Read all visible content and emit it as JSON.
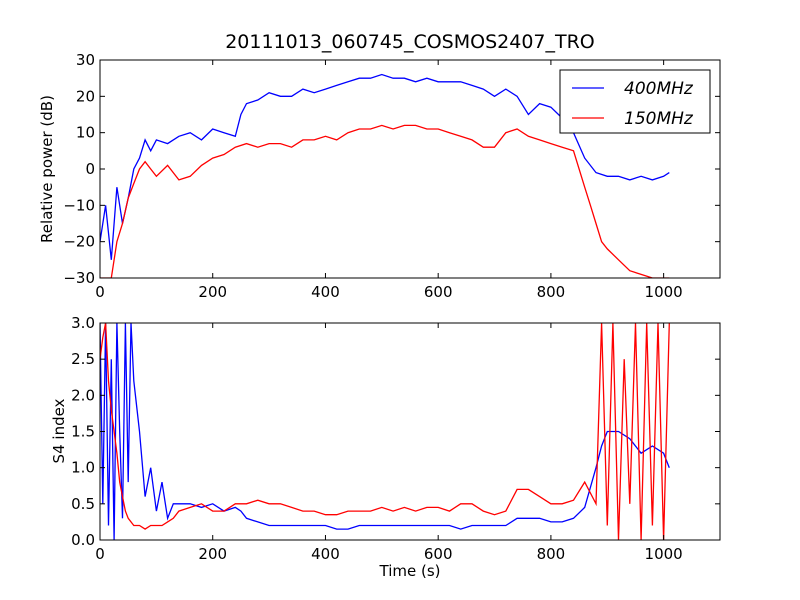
{
  "title": "20111013_060745_COSMOS2407_TRO",
  "colors": {
    "s400": "#0000ff",
    "s150": "#ff0000",
    "axis": "#000000",
    "background": "#ffffff"
  },
  "legend": {
    "position": "top-right",
    "entries": [
      "400MHz",
      "150MHz"
    ]
  },
  "chart_data": [
    {
      "type": "line",
      "title": "20111013_060745_COSMOS2407_TRO",
      "xlabel": "",
      "ylabel": "Relative power (dB)",
      "xlim": [
        0,
        1100
      ],
      "ylim": [
        -30,
        30
      ],
      "xticks": [
        0,
        200,
        400,
        600,
        800,
        1000
      ],
      "yticks": [
        -30,
        -20,
        -10,
        0,
        10,
        20,
        30
      ],
      "grid": false,
      "legend": "top-right",
      "series": [
        {
          "name": "400MHz",
          "color": "#0000ff",
          "x": [
            0,
            10,
            20,
            30,
            40,
            50,
            60,
            70,
            80,
            90,
            100,
            120,
            140,
            160,
            180,
            200,
            220,
            240,
            250,
            260,
            280,
            300,
            320,
            340,
            360,
            380,
            400,
            420,
            440,
            460,
            480,
            500,
            520,
            540,
            560,
            580,
            600,
            620,
            640,
            660,
            680,
            700,
            720,
            740,
            760,
            780,
            800,
            820,
            840,
            860,
            880,
            900,
            920,
            940,
            960,
            980,
            1000,
            1010
          ],
          "y": [
            -20,
            -10,
            -25,
            -5,
            -15,
            -8,
            0,
            3,
            8,
            5,
            8,
            7,
            9,
            10,
            8,
            11,
            10,
            9,
            15,
            18,
            19,
            21,
            20,
            20,
            22,
            21,
            22,
            23,
            24,
            25,
            25,
            26,
            25,
            25,
            24,
            25,
            24,
            24,
            24,
            23,
            22,
            20,
            22,
            20,
            15,
            18,
            17,
            14,
            10,
            3,
            -1,
            -2,
            -2,
            -3,
            -2,
            -3,
            -2,
            -1
          ]
        },
        {
          "name": "150MHz",
          "color": "#ff0000",
          "x": [
            0,
            10,
            20,
            30,
            40,
            50,
            60,
            70,
            80,
            90,
            100,
            120,
            140,
            160,
            180,
            200,
            220,
            240,
            260,
            280,
            300,
            320,
            340,
            360,
            380,
            400,
            420,
            440,
            460,
            480,
            500,
            520,
            540,
            560,
            580,
            600,
            620,
            640,
            660,
            680,
            700,
            720,
            740,
            760,
            780,
            800,
            820,
            840,
            860,
            870,
            880,
            890,
            900,
            920,
            940,
            960,
            980,
            1000,
            1010
          ],
          "y": [
            -30,
            -30,
            -30,
            -20,
            -15,
            -8,
            -4,
            0,
            2,
            0,
            -2,
            1,
            -3,
            -2,
            1,
            3,
            4,
            6,
            7,
            6,
            7,
            7,
            6,
            8,
            8,
            9,
            8,
            10,
            11,
            11,
            12,
            11,
            12,
            12,
            11,
            11,
            10,
            9,
            8,
            6,
            6,
            10,
            11,
            9,
            8,
            7,
            6,
            5,
            -5,
            -10,
            -15,
            -20,
            -22,
            -25,
            -28,
            -29,
            -30,
            -30,
            -30
          ]
        }
      ]
    },
    {
      "type": "line",
      "title": "",
      "xlabel": "Time (s)",
      "ylabel": "S4 index",
      "xlim": [
        0,
        1100
      ],
      "ylim": [
        0,
        3
      ],
      "xticks": [
        0,
        200,
        400,
        600,
        800,
        1000
      ],
      "yticks": [
        0.0,
        0.5,
        1.0,
        1.5,
        2.0,
        2.5,
        3.0
      ],
      "grid": false,
      "series": [
        {
          "name": "400MHz",
          "color": "#0000ff",
          "x": [
            0,
            5,
            10,
            15,
            20,
            25,
            30,
            35,
            40,
            45,
            50,
            55,
            60,
            70,
            80,
            90,
            100,
            110,
            120,
            130,
            140,
            160,
            180,
            200,
            220,
            240,
            250,
            260,
            280,
            300,
            320,
            340,
            360,
            380,
            400,
            420,
            440,
            460,
            480,
            500,
            520,
            540,
            560,
            580,
            600,
            620,
            640,
            660,
            680,
            700,
            720,
            740,
            760,
            780,
            800,
            820,
            840,
            860,
            880,
            890,
            900,
            920,
            940,
            960,
            980,
            1000,
            1010
          ],
          "y": [
            3,
            0.5,
            3,
            0.2,
            2.5,
            0,
            3,
            1.5,
            0.3,
            3,
            0.8,
            3,
            2.2,
            1.5,
            0.6,
            1.0,
            0.4,
            0.8,
            0.3,
            0.5,
            0.5,
            0.5,
            0.45,
            0.5,
            0.4,
            0.45,
            0.4,
            0.3,
            0.25,
            0.2,
            0.2,
            0.2,
            0.2,
            0.2,
            0.2,
            0.15,
            0.15,
            0.2,
            0.2,
            0.2,
            0.2,
            0.2,
            0.2,
            0.2,
            0.2,
            0.2,
            0.15,
            0.2,
            0.2,
            0.2,
            0.2,
            0.3,
            0.3,
            0.3,
            0.25,
            0.25,
            0.3,
            0.45,
            1.0,
            1.3,
            1.5,
            1.5,
            1.4,
            1.2,
            1.3,
            1.2,
            1.0
          ]
        },
        {
          "name": "150MHz",
          "color": "#ff0000",
          "x": [
            0,
            5,
            10,
            15,
            20,
            25,
            30,
            35,
            40,
            45,
            50,
            60,
            70,
            80,
            90,
            100,
            110,
            120,
            130,
            140,
            160,
            180,
            200,
            220,
            240,
            260,
            280,
            300,
            320,
            340,
            360,
            380,
            400,
            420,
            440,
            460,
            480,
            500,
            520,
            540,
            560,
            580,
            600,
            620,
            640,
            660,
            680,
            700,
            720,
            740,
            760,
            780,
            800,
            820,
            840,
            860,
            880,
            890,
            900,
            910,
            920,
            930,
            940,
            950,
            960,
            970,
            980,
            990,
            1000,
            1010
          ],
          "y": [
            2.5,
            2.8,
            3,
            2.2,
            1.8,
            1.5,
            1.2,
            0.8,
            0.6,
            0.4,
            0.3,
            0.2,
            0.2,
            0.15,
            0.2,
            0.2,
            0.2,
            0.25,
            0.3,
            0.4,
            0.45,
            0.5,
            0.4,
            0.4,
            0.5,
            0.5,
            0.55,
            0.5,
            0.5,
            0.45,
            0.4,
            0.4,
            0.35,
            0.35,
            0.4,
            0.4,
            0.4,
            0.45,
            0.4,
            0.45,
            0.4,
            0.45,
            0.45,
            0.4,
            0.5,
            0.5,
            0.4,
            0.35,
            0.4,
            0.7,
            0.7,
            0.6,
            0.5,
            0.5,
            0.55,
            0.8,
            0.5,
            3,
            0.2,
            3,
            0,
            2.5,
            0.5,
            3,
            0,
            3,
            0.2,
            3,
            0,
            3
          ]
        }
      ]
    }
  ]
}
